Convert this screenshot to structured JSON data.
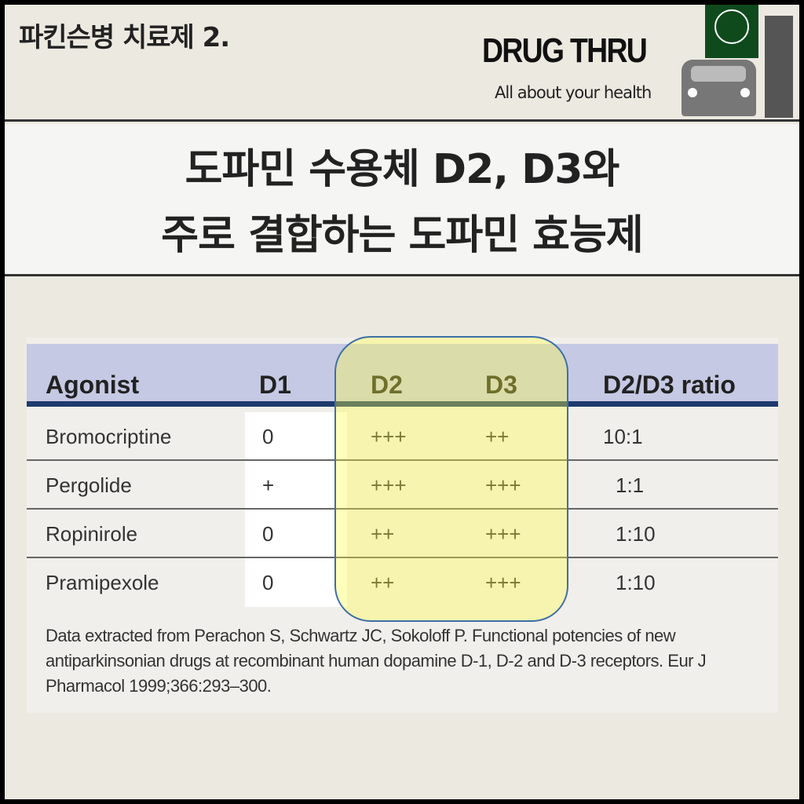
{
  "header": {
    "series_title": "파킨슨병 치료제 2.",
    "brand": "DRUG THRU",
    "slogan": "All about your health",
    "logo_text": "DRUG THRU"
  },
  "title": {
    "line1": "도파민 수용체 D2, D3와",
    "line2": "주로 결합하는 도파민 효능제"
  },
  "table": {
    "headers": [
      "Agonist",
      "D1",
      "D2",
      "D3",
      "D2/D3 ratio"
    ],
    "rows": [
      [
        "Bromocriptine",
        "0",
        "+++",
        "++",
        "10:1"
      ],
      [
        "Pergolide",
        "+",
        "+++",
        "+++",
        "1:1"
      ],
      [
        "Ropinirole",
        "0",
        "++",
        "+++",
        "1:10"
      ],
      [
        "Pramipexole",
        "0",
        "++",
        "+++",
        "1:10"
      ]
    ],
    "highlighted_columns": [
      "D2",
      "D3"
    ],
    "highlight_color": "#ffff3c"
  },
  "citation": "Data extracted from Perachon S, Schwartz JC, Sokoloff P. Functional potencies of new antiparkinsonian drugs at recombinant human dopamine D-1, D-2 and D-3 receptors. Eur J Pharmacol 1999;366:293–300."
}
